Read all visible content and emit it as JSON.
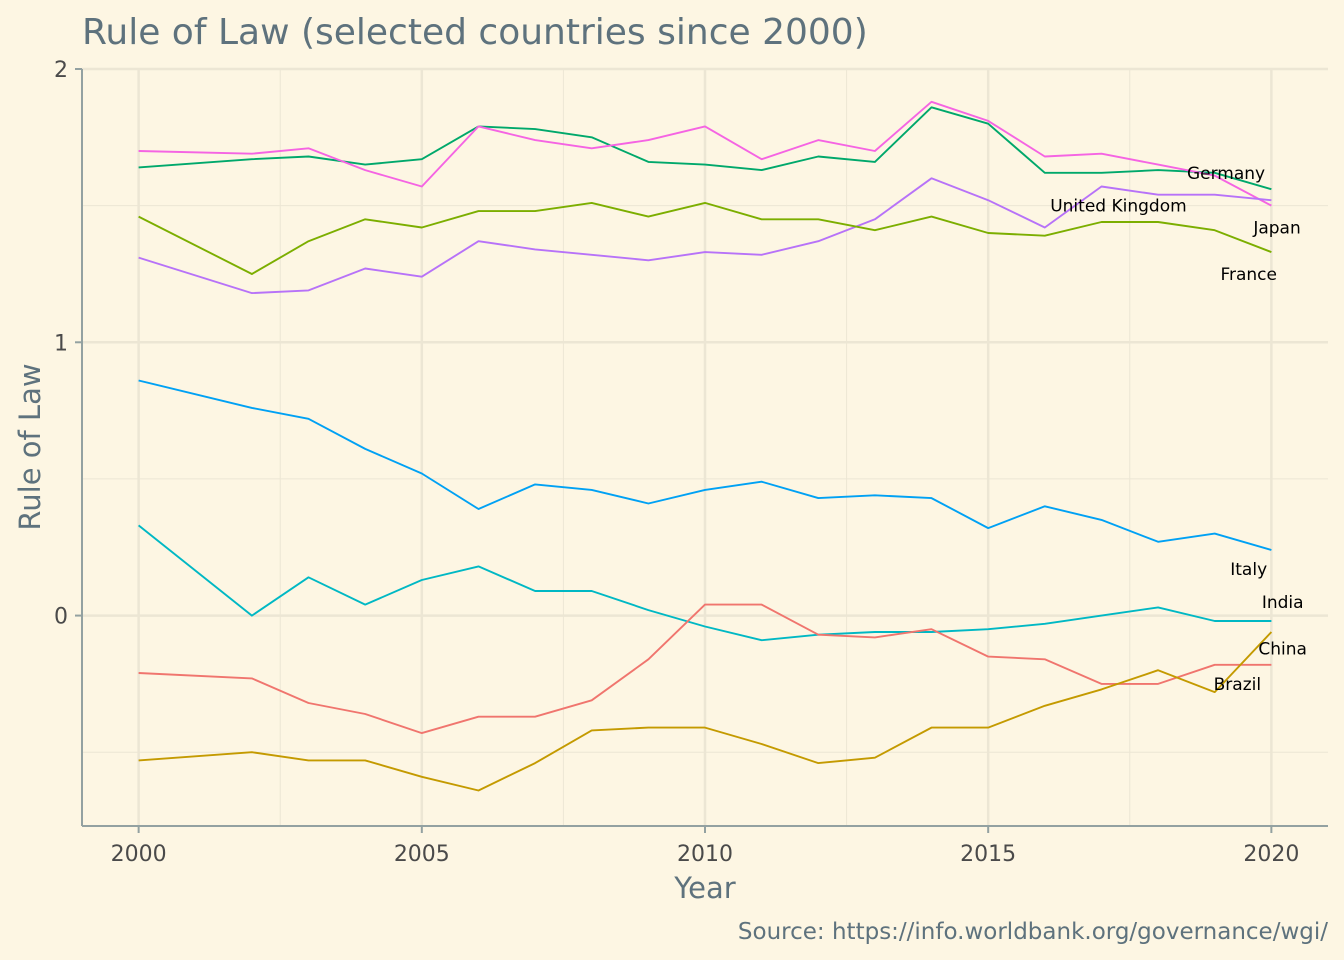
{
  "chart_data": {
    "type": "line",
    "title": "Rule of Law (selected countries since 2000)",
    "xlabel": "Year",
    "ylabel": "Rule of Law",
    "caption": "Source: https://info.worldbank.org/governance/wgi/",
    "xlim": [
      1999,
      2021
    ],
    "ylim": [
      -0.77,
      2.0
    ],
    "x_ticks": [
      2000,
      2005,
      2010,
      2015,
      2020
    ],
    "y_ticks": [
      0,
      1,
      2
    ],
    "grid": true,
    "legend": "none (direct labels at line ends)",
    "x": [
      2000,
      2002,
      2003,
      2004,
      2005,
      2006,
      2007,
      2008,
      2009,
      2010,
      2011,
      2012,
      2013,
      2014,
      2015,
      2016,
      2017,
      2018,
      2019,
      2020
    ],
    "series": [
      {
        "name": "Germany",
        "color": "#00a86b",
        "values": [
          1.64,
          1.67,
          1.68,
          1.65,
          1.67,
          1.79,
          1.78,
          1.75,
          1.66,
          1.65,
          1.63,
          1.68,
          1.66,
          1.86,
          1.8,
          1.62,
          1.62,
          1.63,
          1.62,
          1.56
        ]
      },
      {
        "name": "United Kingdom",
        "color": "#f564e3",
        "values": [
          1.7,
          1.69,
          1.71,
          1.63,
          1.57,
          1.79,
          1.74,
          1.71,
          1.74,
          1.79,
          1.67,
          1.74,
          1.7,
          1.88,
          1.81,
          1.68,
          1.69,
          1.65,
          1.61,
          1.5
        ]
      },
      {
        "name": "Japan",
        "color": "#b772f8",
        "values": [
          1.31,
          1.18,
          1.19,
          1.27,
          1.24,
          1.37,
          1.34,
          1.32,
          1.3,
          1.33,
          1.32,
          1.37,
          1.45,
          1.6,
          1.52,
          1.42,
          1.57,
          1.54,
          1.54,
          1.52
        ]
      },
      {
        "name": "France",
        "color": "#7cae00",
        "values": [
          1.46,
          1.25,
          1.37,
          1.45,
          1.42,
          1.48,
          1.48,
          1.51,
          1.46,
          1.51,
          1.45,
          1.45,
          1.41,
          1.46,
          1.4,
          1.39,
          1.44,
          1.44,
          1.41,
          1.33
        ]
      },
      {
        "name": "Italy",
        "color": "#00a1f4",
        "values": [
          0.86,
          0.76,
          0.72,
          0.61,
          0.52,
          0.39,
          0.48,
          0.46,
          0.41,
          0.46,
          0.49,
          0.43,
          0.44,
          0.43,
          0.32,
          0.4,
          0.35,
          0.27,
          0.3,
          0.24
        ]
      },
      {
        "name": "India",
        "color": "#00b8c4",
        "values": [
          0.33,
          0.0,
          0.14,
          0.04,
          0.13,
          0.18,
          0.09,
          0.09,
          0.02,
          -0.04,
          -0.09,
          -0.07,
          -0.06,
          -0.06,
          -0.05,
          -0.03,
          0.0,
          0.03,
          -0.02,
          -0.02
        ]
      },
      {
        "name": "China",
        "color": "#f0756e",
        "values": [
          -0.21,
          -0.23,
          -0.32,
          -0.36,
          -0.43,
          -0.37,
          -0.37,
          -0.31,
          -0.16,
          0.04,
          0.04,
          -0.07,
          -0.08,
          -0.05,
          -0.15,
          -0.16,
          -0.25,
          -0.25,
          -0.18,
          -0.18
        ]
      },
      {
        "name": "Brazil",
        "color": "#c49a00",
        "values": [
          -0.53,
          -0.5,
          -0.53,
          -0.53,
          -0.59,
          -0.64,
          -0.54,
          -0.42,
          -0.41,
          -0.41,
          -0.47,
          -0.54,
          -0.52,
          -0.41,
          -0.41,
          -0.33,
          -0.27,
          -0.2,
          -0.28,
          -0.06
        ]
      }
    ],
    "series_labels": [
      {
        "name": "Germany",
        "x": 2019.2,
        "y": 1.62
      },
      {
        "name": "United Kingdom",
        "x": 2017.3,
        "y": 1.5
      },
      {
        "name": "Japan",
        "x": 2020.1,
        "y": 1.42
      },
      {
        "name": "France",
        "x": 2019.6,
        "y": 1.25
      },
      {
        "name": "Italy",
        "x": 2019.6,
        "y": 0.17
      },
      {
        "name": "India",
        "x": 2020.2,
        "y": 0.05
      },
      {
        "name": "China",
        "x": 2020.2,
        "y": -0.12
      },
      {
        "name": "Brazil",
        "x": 2019.4,
        "y": -0.25
      }
    ]
  }
}
